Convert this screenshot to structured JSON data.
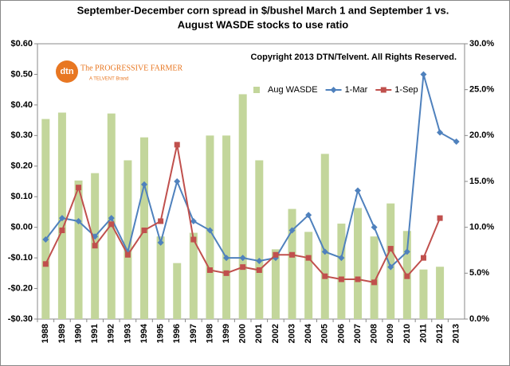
{
  "chart_data": {
    "type": "bar_line",
    "title": [
      "September-December corn spread in $/bushel March 1 and September  1 vs.",
      "August WASDE  stocks to use ratio"
    ],
    "annotation": "Copyright 2013 DTN/Telvent. All Rights Reserved.",
    "logo": {
      "mark": "dtn",
      "name": "The PROGRESSIVE FARMER",
      "tagline": "A TELVENT Brand"
    },
    "categories": [
      "1988",
      "1989",
      "1990",
      "1991",
      "1992",
      "1993",
      "1994",
      "1995",
      "1996",
      "1997",
      "1998",
      "1999",
      "2000",
      "2001",
      "2002",
      "2003",
      "2004",
      "2005",
      "2006",
      "2007",
      "2008",
      "2009",
      "2010",
      "2011",
      "2012",
      "2013"
    ],
    "series": [
      {
        "name": "Aug WASDE",
        "type": "bar",
        "axis": "y2",
        "color": "#c3d69b",
        "values": [
          21.8,
          22.5,
          15.1,
          15.9,
          22.4,
          17.3,
          19.8,
          9.0,
          6.1,
          9.4,
          20.0,
          20.0,
          24.5,
          17.3,
          7.6,
          12.0,
          9.5,
          18.0,
          10.4,
          12.1,
          9.0,
          12.6,
          9.6,
          5.4,
          5.7,
          null
        ]
      },
      {
        "name": "1-Mar",
        "type": "line",
        "marker": "diamond",
        "color": "#4f81bd",
        "values": [
          -0.04,
          0.03,
          0.02,
          -0.03,
          0.03,
          -0.08,
          0.14,
          -0.05,
          0.15,
          0.02,
          -0.01,
          -0.1,
          -0.1,
          -0.11,
          -0.1,
          -0.01,
          0.04,
          -0.08,
          -0.1,
          0.12,
          0.0,
          -0.13,
          -0.08,
          0.5,
          0.31,
          0.28
        ]
      },
      {
        "name": "1-Sep",
        "type": "line",
        "marker": "square",
        "color": "#c0504d",
        "values": [
          -0.12,
          -0.01,
          0.13,
          -0.06,
          0.01,
          -0.09,
          -0.01,
          0.02,
          0.27,
          -0.04,
          -0.14,
          -0.15,
          -0.13,
          -0.14,
          -0.09,
          -0.09,
          -0.1,
          -0.16,
          -0.17,
          -0.17,
          -0.18,
          -0.07,
          -0.16,
          -0.1,
          0.03,
          null
        ]
      }
    ],
    "ylim": [
      -0.3,
      0.6
    ],
    "yticks": [
      {
        "value": -0.3,
        "label": "-$0.30"
      },
      {
        "value": -0.2,
        "label": "-$0.20"
      },
      {
        "value": -0.1,
        "label": "-$0.10"
      },
      {
        "value": 0,
        "label": "$0.00"
      },
      {
        "value": 0.1,
        "label": "$0.10"
      },
      {
        "value": 0.2,
        "label": "$0.20"
      },
      {
        "value": 0.3,
        "label": "$0.30"
      },
      {
        "value": 0.4,
        "label": "$0.40"
      },
      {
        "value": 0.5,
        "label": "$0.50"
      },
      {
        "value": 0.6,
        "label": "$0.60"
      }
    ],
    "y2lim": [
      0,
      30
    ],
    "y2ticks": [
      {
        "value": 0,
        "label": "0.0%"
      },
      {
        "value": 5,
        "label": "5.0%"
      },
      {
        "value": 10,
        "label": "10.0%"
      },
      {
        "value": 15,
        "label": "15.0%"
      },
      {
        "value": 20,
        "label": "20.0%"
      },
      {
        "value": 25,
        "label": "25.0%"
      },
      {
        "value": 30,
        "label": "30.0%"
      }
    ],
    "grid": false,
    "legend": "top"
  }
}
